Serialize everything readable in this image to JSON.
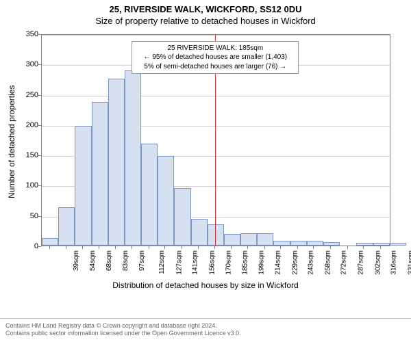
{
  "title": {
    "line1": "25, RIVERSIDE WALK, WICKFORD, SS12 0DU",
    "line2": "Size of property relative to detached houses in Wickford",
    "fontsize": 13
  },
  "chart": {
    "type": "histogram",
    "plot_background": "#ffffff",
    "border_color": "#808080",
    "grid_color": "#d0d0d0",
    "bar_fill": "#d6e0f0",
    "bar_border": "#7a94c4",
    "ref_line_color": "#cc3333",
    "ref_line_x": 185,
    "x_label": "Distribution of detached houses by size in Wickford",
    "y_label": "Number of detached properties",
    "label_fontsize": 12,
    "tick_fontsize": 11,
    "x_tick_fontsize": 10,
    "x_tick_suffix": "sqm",
    "ylim": [
      0,
      350
    ],
    "ytick_step": 50,
    "yticks": [
      0,
      50,
      100,
      150,
      200,
      250,
      300,
      350
    ],
    "xlim": [
      32,
      340
    ],
    "x_tick_start": 39,
    "x_tick_step": 14.6,
    "x_ticks": [
      39,
      54,
      68,
      83,
      97,
      112,
      127,
      141,
      156,
      170,
      185,
      199,
      214,
      229,
      243,
      258,
      272,
      287,
      302,
      316,
      331
    ],
    "bin_width": 14.6,
    "bins_left_edge_start": 32,
    "values": [
      12,
      63,
      198,
      237,
      276,
      289,
      168,
      148,
      95,
      44,
      35,
      19,
      20,
      20,
      8,
      8,
      8,
      6,
      0,
      5,
      5,
      5
    ],
    "bar_width_ratio": 1.0,
    "annotation": {
      "line1": "25 RIVERSIDE WALK: 185sqm",
      "line2": "← 95% of detached houses are smaller (1,403)",
      "line3": "5% of semi-detached houses are larger (76) →",
      "box_border": "#999999",
      "box_bg": "#ffffff",
      "fontsize": 10,
      "x_center": 185,
      "y_top": 340
    }
  },
  "footer": {
    "line1": "Contains HM Land Registry data © Crown copyright and database right 2024.",
    "line2": "Contains public sector information licensed under the Open Government Licence v3.0.",
    "fontsize": 9,
    "color": "#666666"
  }
}
